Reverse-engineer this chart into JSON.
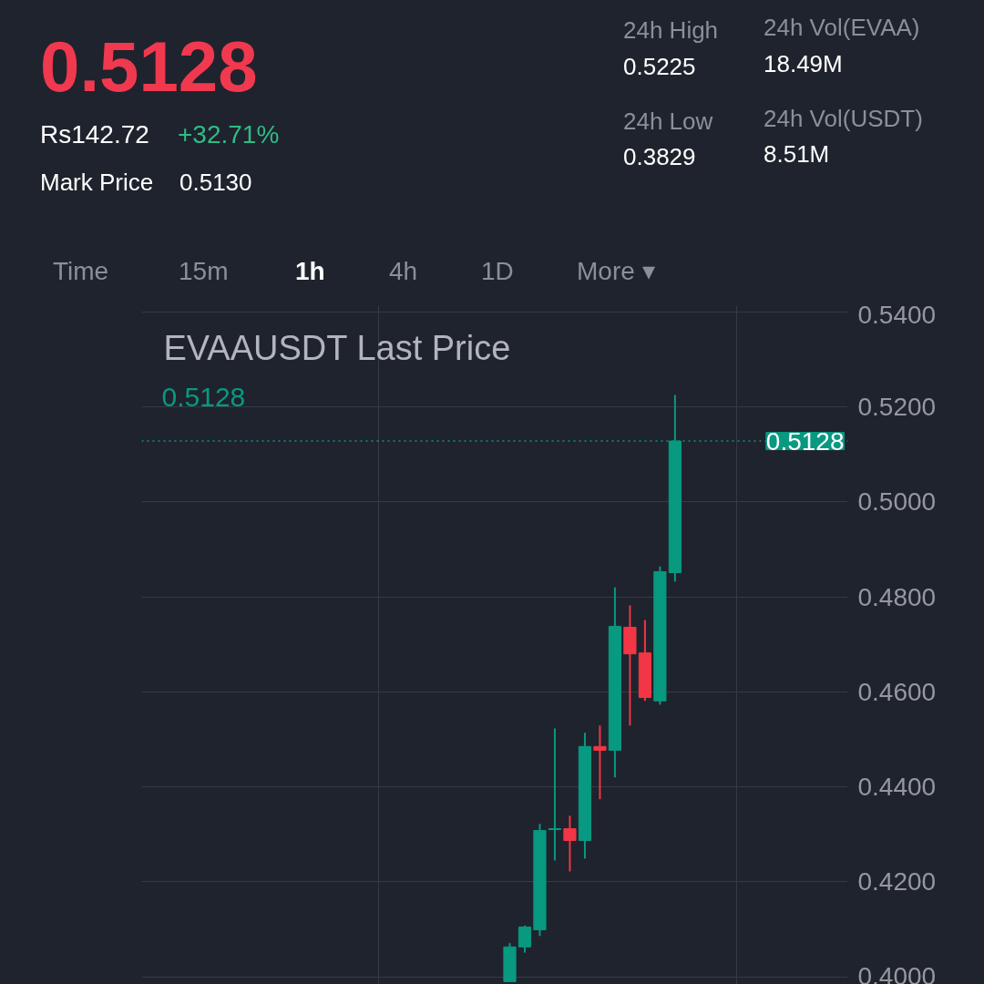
{
  "chart_data": {
    "type": "candlestick",
    "title": "EVAAUSDT Last Price",
    "categories": [
      null,
      null,
      null,
      null,
      null,
      null,
      null,
      null,
      null,
      null,
      null,
      null,
      null,
      null,
      null,
      null,
      null,
      null,
      null,
      null,
      null,
      null,
      null,
      null,
      null,
      null,
      null,
      null,
      null,
      null,
      null,
      null,
      null,
      null,
      null,
      null,
      null,
      null,
      null,
      null,
      null,
      null,
      null,
      null,
      null,
      null,
      null
    ],
    "ohlc": [
      null,
      null,
      null,
      null,
      null,
      null,
      null,
      null,
      null,
      null,
      null,
      null,
      null,
      null,
      null,
      null,
      null,
      null,
      null,
      null,
      null,
      null,
      null,
      null,
      [
        0.399,
        0.4071,
        0.399,
        0.4063
      ],
      [
        0.4063,
        0.4108,
        0.4051,
        0.4105
      ],
      [
        0.4099,
        0.4322,
        0.4086,
        0.4308
      ],
      [
        0.431,
        0.4523,
        0.4245,
        0.4312
      ],
      [
        0.4312,
        0.4339,
        0.4222,
        0.4287
      ],
      [
        0.4287,
        0.4514,
        0.4249,
        0.4485
      ],
      [
        0.4485,
        0.4529,
        0.4374,
        0.4477
      ],
      [
        0.4477,
        0.482,
        0.442,
        0.4738
      ],
      [
        0.4736,
        0.4782,
        0.4529,
        0.468
      ],
      [
        0.4682,
        0.4751,
        0.4581,
        0.4588
      ],
      [
        0.4581,
        0.4864,
        0.4573,
        0.4853
      ],
      [
        0.4851,
        0.5225,
        0.4832,
        0.5128
      ],
      null,
      null,
      null,
      null,
      null,
      null,
      null,
      null,
      null,
      null,
      null
    ],
    "colors": [
      null,
      null,
      null,
      null,
      null,
      null,
      null,
      null,
      null,
      null,
      null,
      null,
      null,
      null,
      null,
      null,
      null,
      null,
      null,
      null,
      null,
      null,
      null,
      null,
      "#089981",
      "#089981",
      "#089981",
      "#089981",
      "#f23645",
      "#089981",
      "#f23645",
      "#089981",
      "#f23645",
      "#f23645",
      "#089981",
      "#089981",
      null,
      null,
      null,
      null,
      null,
      null,
      null,
      null,
      null,
      null,
      null
    ],
    "ylim": [
      0.3984,
      0.5413
    ],
    "yticks": [
      {
        "value": 0.4,
        "label": "0.4000"
      },
      {
        "value": 0.42,
        "label": "0.4200"
      },
      {
        "value": 0.44,
        "label": "0.4400"
      },
      {
        "value": 0.46,
        "label": "0.4600"
      },
      {
        "value": 0.48,
        "label": "0.4800"
      },
      {
        "value": 0.5,
        "label": "0.5000"
      },
      {
        "value": 0.52,
        "label": "0.5200"
      },
      {
        "value": 0.54,
        "label": "0.5400"
      }
    ],
    "tick_labels": "y",
    "grid": true,
    "ref_lines": [
      {
        "axis": "y",
        "value": 0.5128,
        "label": "0.5128",
        "color": "#089981",
        "line_style": "dotted"
      }
    ],
    "annotations": [
      "0.5128",
      "Rs142.72",
      "+32.71%",
      "Mark Price",
      "0.5130",
      "24h High",
      "0.5225",
      "24h Vol(EVAA)",
      "18.49M",
      "24h Low",
      "0.3829",
      "24h Vol(USDT)",
      "8.51M",
      "Time",
      "15m",
      "1h",
      "4h",
      "1D",
      "More ▾",
      "0.5128"
    ]
  }
}
